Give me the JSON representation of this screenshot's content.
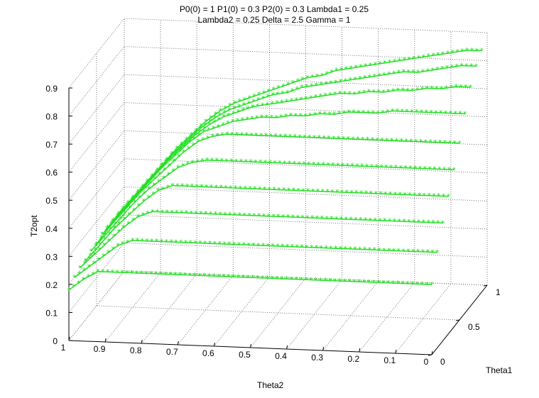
{
  "chart_data": {
    "type": "line",
    "projection": "3d",
    "title": [
      "P0(0) = 1 P1(0) = 0.3 P2(0) = 0.3 Lambda1 = 0.25",
      "Lambda2 = 0.25 Delta = 2.5 Gamma = 1"
    ],
    "xlabel": "Theta1",
    "ylabel": "Theta2",
    "zlabel": "T2opt",
    "xlim": [
      0,
      1
    ],
    "ylim": [
      0,
      1
    ],
    "zlim": [
      0,
      0.9
    ],
    "grid": true,
    "x_ticks": [
      "0",
      "0.5",
      "1"
    ],
    "y_ticks": [
      "1",
      "0.9",
      "0.8",
      "0.7",
      "0.6",
      "0.5",
      "0.4",
      "0.3",
      "0.2",
      "0.1",
      "0"
    ],
    "z_ticks": [
      "0",
      "0.1",
      "0.2",
      "0.3",
      "0.4",
      "0.5",
      "0.6",
      "0.7",
      "0.8",
      "0.9"
    ],
    "marker": "*",
    "color": "#22e022",
    "x": [
      0,
      0.04,
      0.08,
      0.12,
      0.16,
      0.2,
      0.24,
      0.28,
      0.32,
      0.36,
      0.4,
      0.44,
      0.48,
      0.52,
      0.56,
      0.6,
      0.64,
      0.68,
      0.72,
      0.76,
      0.8,
      0.84,
      0.88,
      0.92,
      0.96,
      1
    ],
    "series": [
      {
        "theta1": 0.0,
        "values": [
          0.25,
          0.25,
          0.25,
          0.25,
          0.25,
          0.25,
          0.25,
          0.25,
          0.25,
          0.25,
          0.25,
          0.25,
          0.25,
          0.25,
          0.25,
          0.25,
          0.25,
          0.25,
          0.25,
          0.25,
          0.25,
          0.25,
          0.25,
          0.25,
          0.22,
          0.18
        ]
      },
      {
        "theta1": 0.1,
        "values": [
          0.34,
          0.34,
          0.34,
          0.34,
          0.34,
          0.34,
          0.34,
          0.34,
          0.34,
          0.34,
          0.34,
          0.34,
          0.34,
          0.34,
          0.34,
          0.34,
          0.34,
          0.34,
          0.34,
          0.34,
          0.34,
          0.34,
          0.32,
          0.28,
          0.24,
          0.2
        ]
      },
      {
        "theta1": 0.2,
        "values": [
          0.42,
          0.42,
          0.42,
          0.42,
          0.42,
          0.42,
          0.42,
          0.42,
          0.42,
          0.42,
          0.42,
          0.42,
          0.42,
          0.42,
          0.42,
          0.42,
          0.42,
          0.42,
          0.42,
          0.42,
          0.42,
          0.4,
          0.36,
          0.31,
          0.26,
          0.21
        ]
      },
      {
        "theta1": 0.3,
        "values": [
          0.49,
          0.49,
          0.49,
          0.49,
          0.49,
          0.49,
          0.49,
          0.49,
          0.49,
          0.49,
          0.49,
          0.49,
          0.49,
          0.49,
          0.49,
          0.49,
          0.49,
          0.49,
          0.49,
          0.49,
          0.47,
          0.43,
          0.38,
          0.33,
          0.27,
          0.21
        ]
      },
      {
        "theta1": 0.4,
        "values": [
          0.56,
          0.56,
          0.56,
          0.56,
          0.56,
          0.56,
          0.56,
          0.56,
          0.56,
          0.56,
          0.56,
          0.56,
          0.56,
          0.56,
          0.56,
          0.56,
          0.56,
          0.56,
          0.55,
          0.53,
          0.49,
          0.45,
          0.4,
          0.34,
          0.28,
          0.22
        ]
      },
      {
        "theta1": 0.5,
        "values": [
          0.63,
          0.63,
          0.63,
          0.63,
          0.63,
          0.63,
          0.63,
          0.63,
          0.63,
          0.63,
          0.63,
          0.63,
          0.63,
          0.63,
          0.63,
          0.63,
          0.63,
          0.62,
          0.6,
          0.56,
          0.51,
          0.46,
          0.41,
          0.35,
          0.29,
          0.22
        ]
      },
      {
        "theta1": 0.6,
        "values": [
          0.71,
          0.71,
          0.71,
          0.71,
          0.71,
          0.71,
          0.7,
          0.7,
          0.7,
          0.69,
          0.69,
          0.68,
          0.68,
          0.67,
          0.67,
          0.66,
          0.65,
          0.63,
          0.61,
          0.57,
          0.52,
          0.47,
          0.41,
          0.35,
          0.29,
          0.23
        ]
      },
      {
        "theta1": 0.7,
        "values": [
          0.78,
          0.78,
          0.77,
          0.77,
          0.76,
          0.76,
          0.75,
          0.75,
          0.74,
          0.74,
          0.73,
          0.72,
          0.71,
          0.7,
          0.69,
          0.68,
          0.66,
          0.64,
          0.61,
          0.57,
          0.52,
          0.47,
          0.41,
          0.35,
          0.29,
          0.23
        ]
      },
      {
        "theta1": 0.8,
        "values": [
          0.83,
          0.83,
          0.82,
          0.81,
          0.8,
          0.8,
          0.79,
          0.78,
          0.77,
          0.76,
          0.75,
          0.74,
          0.73,
          0.71,
          0.7,
          0.68,
          0.66,
          0.64,
          0.61,
          0.57,
          0.52,
          0.47,
          0.41,
          0.35,
          0.29,
          0.23
        ]
      },
      {
        "theta1": 0.9,
        "values": [
          0.86,
          0.86,
          0.85,
          0.84,
          0.83,
          0.82,
          0.81,
          0.8,
          0.79,
          0.78,
          0.77,
          0.75,
          0.74,
          0.72,
          0.7,
          0.68,
          0.66,
          0.64,
          0.61,
          0.57,
          0.52,
          0.47,
          0.41,
          0.35,
          0.29,
          0.23
        ]
      }
    ]
  }
}
